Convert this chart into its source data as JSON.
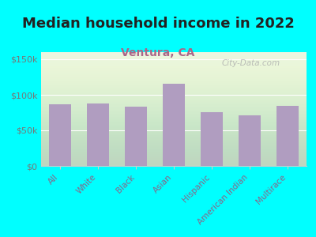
{
  "title": "Median household income in 2022",
  "subtitle": "Ventura, CA",
  "categories": [
    "All",
    "White",
    "Black",
    "Asian",
    "Hispanic",
    "American Indian",
    "Multirace"
  ],
  "values": [
    87000,
    88000,
    83000,
    115000,
    76000,
    71000,
    85000
  ],
  "bar_color": "#b09dc0",
  "background_outer": "#00ffff",
  "background_inner": "#e8f5e0",
  "title_fontsize": 13,
  "subtitle_fontsize": 10,
  "ytick_color": "#777777",
  "xtick_color": "#886688",
  "title_color": "#222222",
  "subtitle_color": "#aa6688",
  "ylim": [
    0,
    160000
  ],
  "yticks": [
    0,
    50000,
    100000,
    150000
  ],
  "ytick_labels": [
    "$0",
    "$50k",
    "$100k",
    "$150k"
  ],
  "watermark": "City-Data.com"
}
